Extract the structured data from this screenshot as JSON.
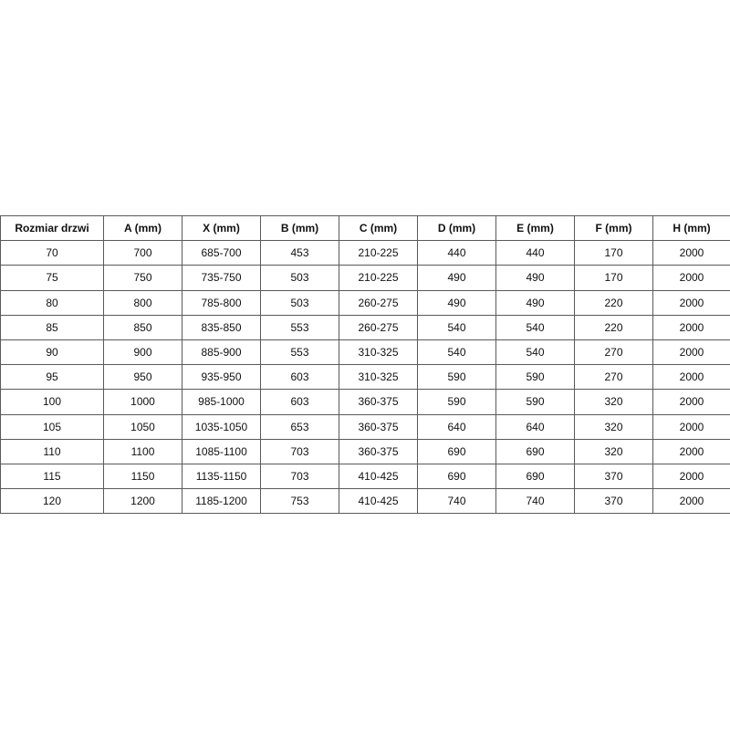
{
  "table": {
    "headers": [
      "Rozmiar drzwi",
      "A (mm)",
      "X (mm)",
      "B (mm)",
      "C (mm)",
      "D (mm)",
      "E (mm)",
      "F (mm)",
      "H (mm)"
    ],
    "rows": [
      [
        "70",
        "700",
        "685-700",
        "453",
        "210-225",
        "440",
        "440",
        "170",
        "2000"
      ],
      [
        "75",
        "750",
        "735-750",
        "503",
        "210-225",
        "490",
        "490",
        "170",
        "2000"
      ],
      [
        "80",
        "800",
        "785-800",
        "503",
        "260-275",
        "490",
        "490",
        "220",
        "2000"
      ],
      [
        "85",
        "850",
        "835-850",
        "553",
        "260-275",
        "540",
        "540",
        "220",
        "2000"
      ],
      [
        "90",
        "900",
        "885-900",
        "553",
        "310-325",
        "540",
        "540",
        "270",
        "2000"
      ],
      [
        "95",
        "950",
        "935-950",
        "603",
        "310-325",
        "590",
        "590",
        "270",
        "2000"
      ],
      [
        "100",
        "1000",
        "985-1000",
        "603",
        "360-375",
        "590",
        "590",
        "320",
        "2000"
      ],
      [
        "105",
        "1050",
        "1035-1050",
        "653",
        "360-375",
        "640",
        "640",
        "320",
        "2000"
      ],
      [
        "110",
        "1100",
        "1085-1100",
        "703",
        "360-375",
        "690",
        "690",
        "320",
        "2000"
      ],
      [
        "115",
        "1150",
        "1135-1150",
        "703",
        "410-425",
        "690",
        "690",
        "370",
        "2000"
      ],
      [
        "120",
        "1200",
        "1185-1200",
        "753",
        "410-425",
        "740",
        "740",
        "370",
        "2000"
      ]
    ]
  }
}
